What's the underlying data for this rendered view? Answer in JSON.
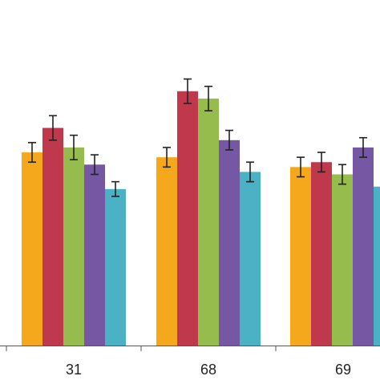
{
  "chart_data": {
    "type": "bar",
    "categories": [
      "31",
      "68",
      "69"
    ],
    "series": [
      {
        "color": "#F5A81C",
        "values": [
          79,
          77,
          73
        ],
        "errors": [
          4,
          4,
          4
        ]
      },
      {
        "color": "#C0384C",
        "values": [
          89,
          104,
          75
        ],
        "errors": [
          5,
          5,
          4
        ]
      },
      {
        "color": "#95BC4C",
        "values": [
          81,
          101,
          70
        ],
        "errors": [
          5,
          5,
          4
        ]
      },
      {
        "color": "#7657A4",
        "values": [
          74,
          84,
          81
        ],
        "errors": [
          4,
          4,
          4
        ]
      },
      {
        "color": "#4BB1C5",
        "values": [
          64,
          71,
          65
        ],
        "errors": [
          3,
          4,
          4
        ]
      }
    ],
    "ylim": [
      0,
      125
    ],
    "grid": false,
    "legend": "none",
    "axis_color": "#555555",
    "error_bar_color": "#222222"
  }
}
